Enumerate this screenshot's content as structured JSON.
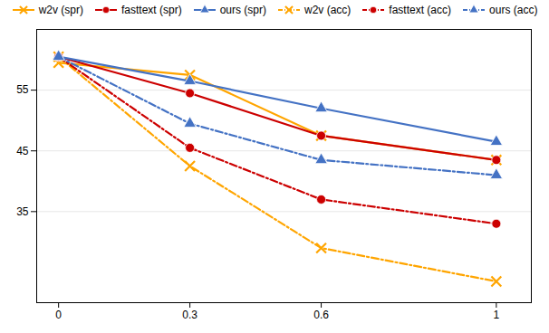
{
  "chart_data": {
    "type": "line",
    "x": [
      0,
      0.3,
      0.6,
      1.0
    ],
    "series": [
      {
        "name": "w2v (spr)",
        "color": "#FFA500",
        "line_style": "solid",
        "marker": "x",
        "values": [
          59.5,
          57.5,
          47.5,
          43.5
        ]
      },
      {
        "name": "fasttext (spr)",
        "color": "#CC0000",
        "line_style": "solid",
        "marker": "circle",
        "values": [
          60.5,
          54.5,
          47.5,
          43.5
        ]
      },
      {
        "name": "ours (spr)",
        "color": "#4472C4",
        "line_style": "solid",
        "marker": "triangle",
        "values": [
          60.5,
          56.5,
          52.0,
          46.5
        ]
      },
      {
        "name": "w2v (acc)",
        "color": "#FFA500",
        "line_style": "dashdot",
        "marker": "x",
        "values": [
          60.5,
          42.5,
          29.0,
          23.5
        ]
      },
      {
        "name": "fasttext (acc)",
        "color": "#CC0000",
        "line_style": "dashdot",
        "marker": "circle",
        "values": [
          60.5,
          45.5,
          37.0,
          33.0
        ]
      },
      {
        "name": "ours (acc)",
        "color": "#4472C4",
        "line_style": "dashdot",
        "marker": "triangle",
        "values": [
          60.5,
          49.5,
          43.5,
          41.0
        ]
      }
    ],
    "xlim": [
      -0.05,
      1.08
    ],
    "xticks": [
      0,
      0.3,
      0.6,
      1
    ],
    "ylim": [
      20,
      65
    ],
    "yticks": [
      35,
      45,
      55
    ],
    "grid": true,
    "legend": "top"
  }
}
